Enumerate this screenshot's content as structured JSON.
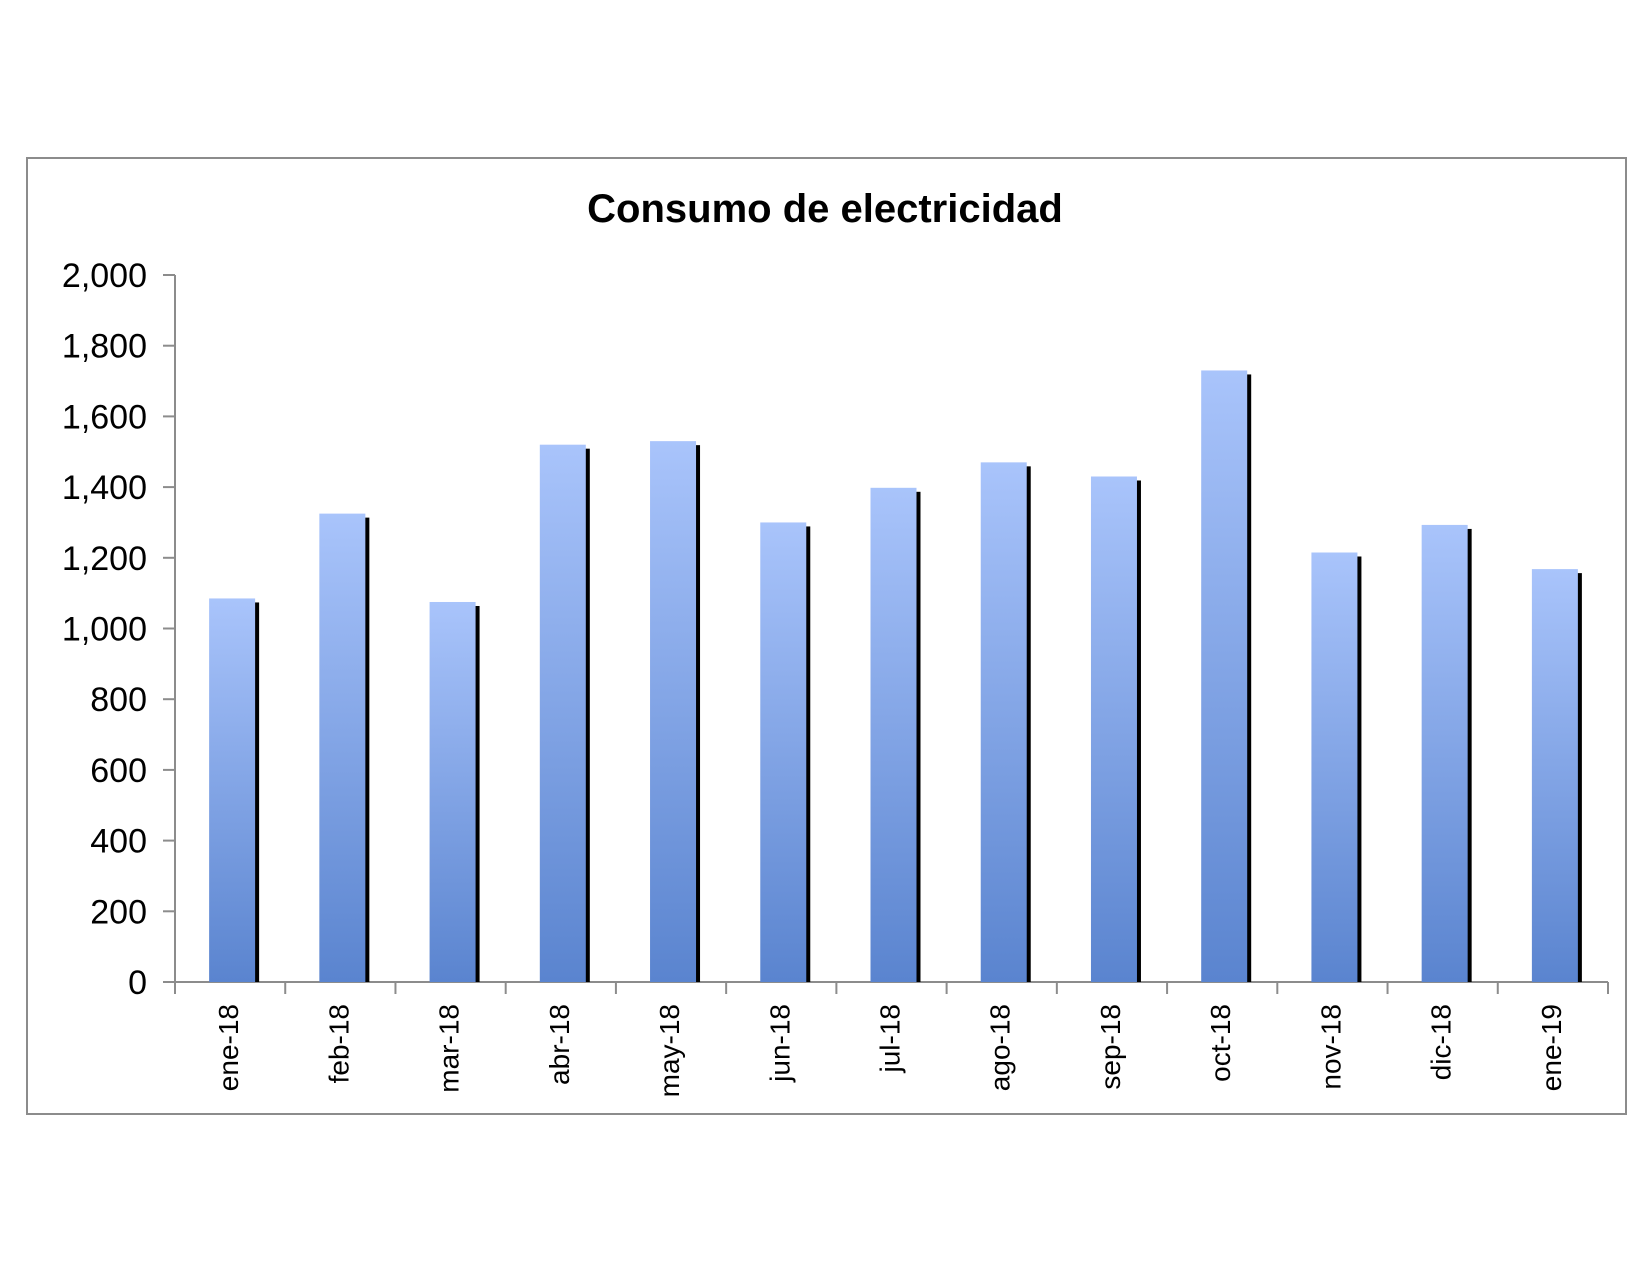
{
  "chart_data": {
    "type": "bar",
    "title": "Consumo de electricidad",
    "xlabel": "",
    "ylabel": "",
    "categories": [
      "ene-18",
      "feb-18",
      "mar-18",
      "abr-18",
      "may-18",
      "jun-18",
      "jul-18",
      "ago-18",
      "sep-18",
      "oct-18",
      "nov-18",
      "dic-18",
      "ene-19"
    ],
    "values": [
      1085,
      1325,
      1075,
      1520,
      1530,
      1300,
      1398,
      1470,
      1430,
      1730,
      1215,
      1293,
      1168
    ],
    "ylim": [
      0,
      2000
    ],
    "yticks": [
      "0",
      "200",
      "400",
      "600",
      "800",
      "1,000",
      "1,200",
      "1,400",
      "1,600",
      "1,800",
      "2,000"
    ],
    "grid": false,
    "legend": "none",
    "colors": {
      "bar_top": "#a9c4fb",
      "bar_bottom": "#5a84cf",
      "bar_shadow": "#000000",
      "axis": "#8c8c8c"
    }
  }
}
